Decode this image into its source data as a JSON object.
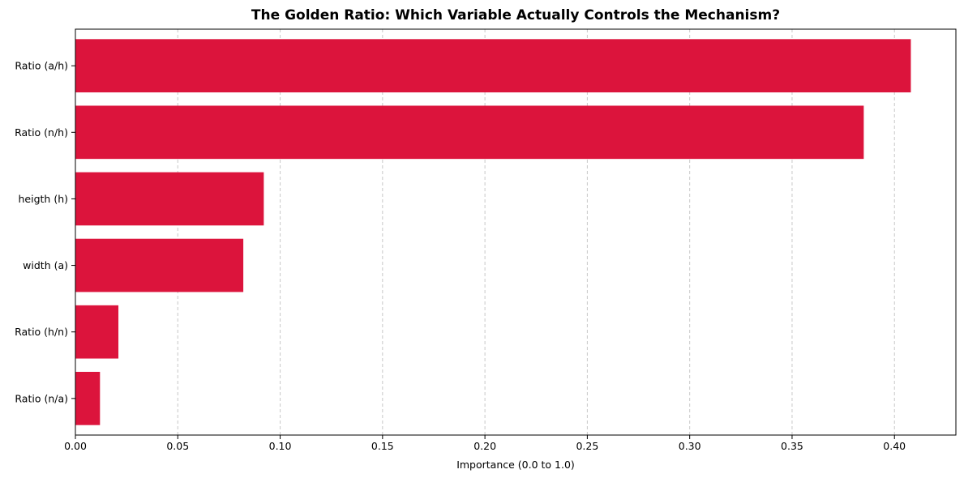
{
  "chart_data": {
    "type": "bar",
    "orientation": "horizontal",
    "title": "The Golden Ratio: Which Variable Actually Controls the Mechanism?",
    "xlabel": "Importance (0.0 to 1.0)",
    "ylabel": "",
    "categories": [
      "Ratio (a/h)",
      "Ratio (n/h)",
      "heigth (h)",
      "width (a)",
      "Ratio (h/n)",
      "Ratio (n/a)"
    ],
    "values": [
      0.408,
      0.385,
      0.092,
      0.082,
      0.021,
      0.012
    ],
    "xlim": [
      0.0,
      0.43
    ],
    "xticks": [
      0.0,
      0.05,
      0.1,
      0.15,
      0.2,
      0.25,
      0.3,
      0.35,
      0.4
    ],
    "xtick_labels": [
      "0.00",
      "0.05",
      "0.10",
      "0.15",
      "0.20",
      "0.25",
      "0.30",
      "0.35",
      "0.40"
    ],
    "grid": "x-axis, dashed",
    "legend": "none",
    "bar_color": "#DC143C",
    "grid_color": "#c8c8c8"
  }
}
